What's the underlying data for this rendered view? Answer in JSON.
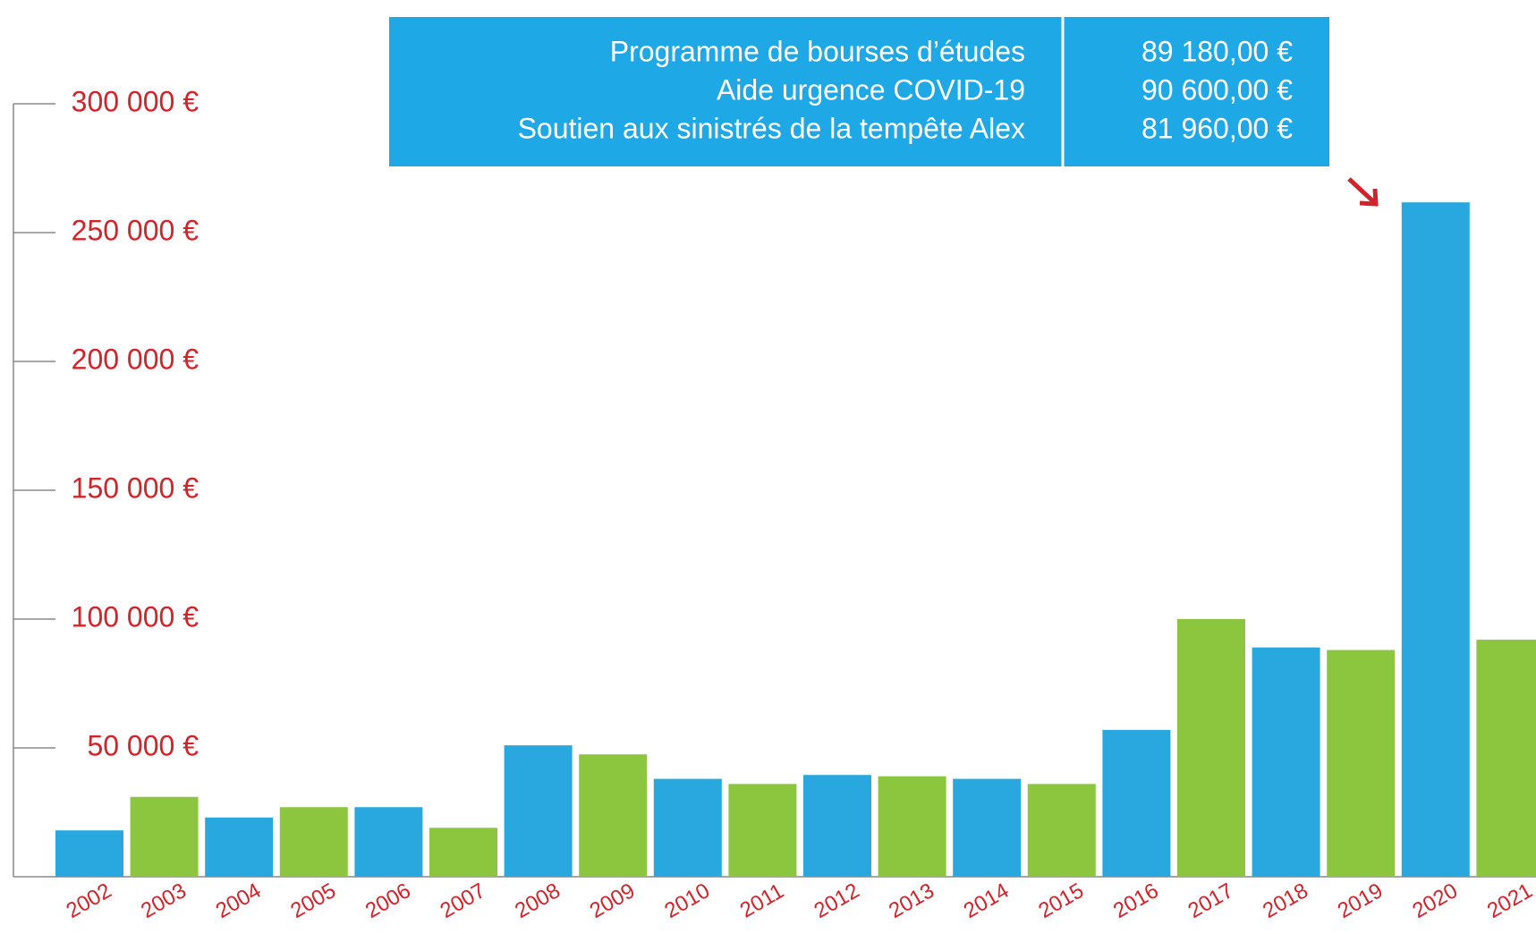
{
  "chart_data": {
    "type": "bar",
    "categories": [
      "2002",
      "2003",
      "2004",
      "2005",
      "2006",
      "2007",
      "2008",
      "2009",
      "2010",
      "2011",
      "2012",
      "2013",
      "2014",
      "2015",
      "2016",
      "2017",
      "2018",
      "2019",
      "2020",
      "2021"
    ],
    "values": [
      18000,
      31000,
      23000,
      27000,
      27000,
      19000,
      51000,
      47500,
      38000,
      36000,
      39500,
      39000,
      38000,
      36000,
      57000,
      100000,
      89000,
      88000,
      261740,
      92000
    ],
    "colors": [
      "#29a8e0",
      "#8cc63f",
      "#29a8e0",
      "#8cc63f",
      "#29a8e0",
      "#8cc63f",
      "#29a8e0",
      "#8cc63f",
      "#29a8e0",
      "#8cc63f",
      "#29a8e0",
      "#8cc63f",
      "#29a8e0",
      "#8cc63f",
      "#29a8e0",
      "#8cc63f",
      "#29a8e0",
      "#8cc63f",
      "#29a8e0",
      "#8cc63f"
    ],
    "ylim": [
      0,
      300000
    ],
    "yticks": [
      {
        "value": 50000,
        "label": "50 000 €"
      },
      {
        "value": 100000,
        "label": "100 000 €"
      },
      {
        "value": 150000,
        "label": "150 000 €"
      },
      {
        "value": 200000,
        "label": "200 000 €"
      },
      {
        "value": 250000,
        "label": "250 000 €"
      },
      {
        "value": 300000,
        "label": "300 000 €"
      }
    ],
    "table": {
      "rows": [
        [
          "Programme de bourses d’études",
          "89 180,00 €"
        ],
        [
          "Aide urgence COVID-19",
          "90 600,00 €"
        ],
        [
          "Soutien aux sinistrés de la tempête Alex",
          "81 960,00 €"
        ]
      ]
    }
  }
}
